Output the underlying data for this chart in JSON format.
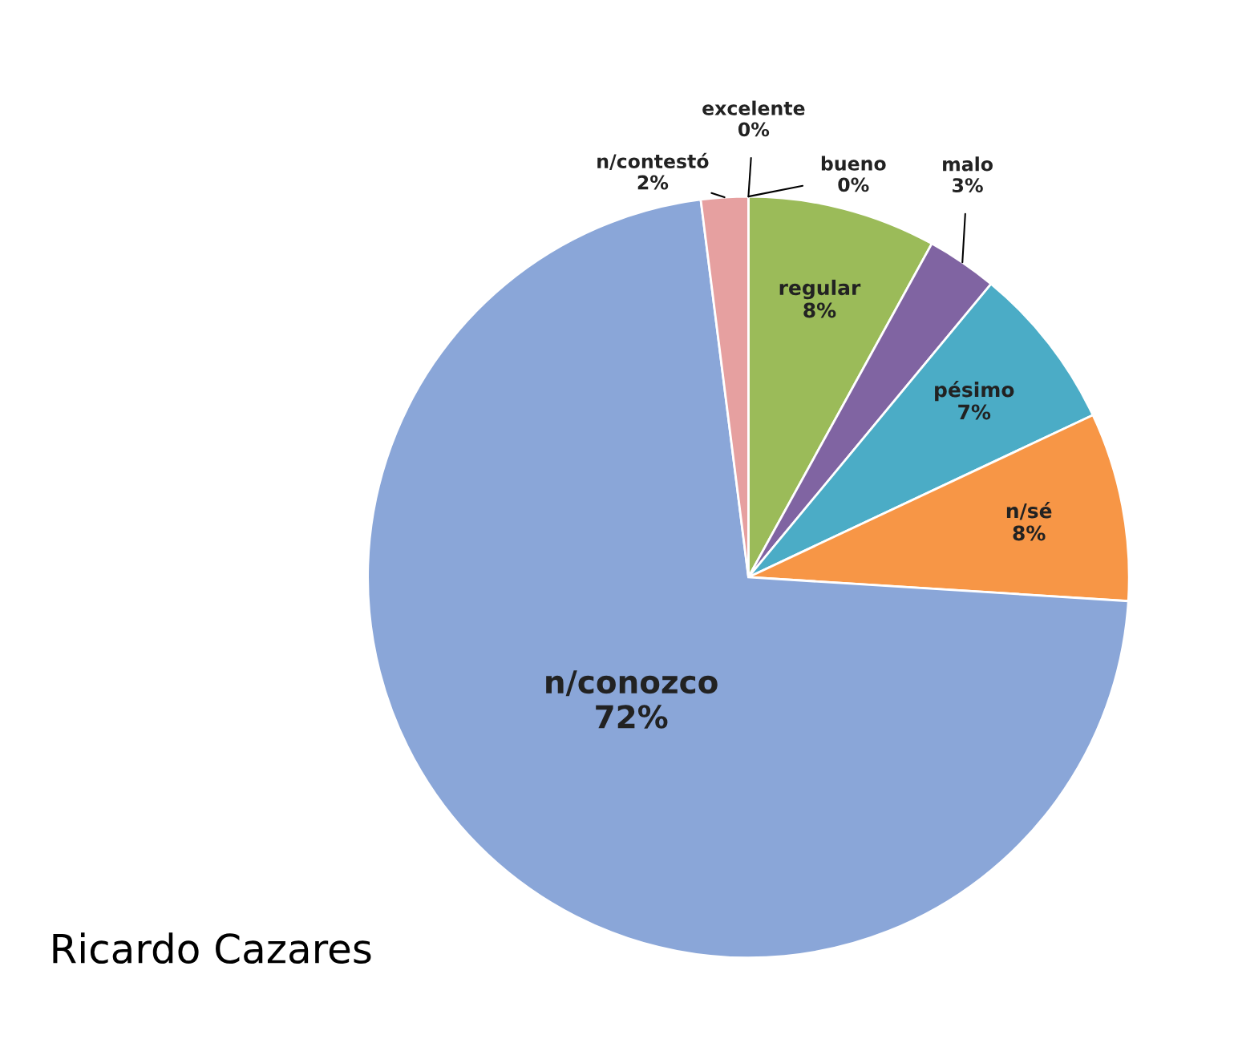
{
  "chart_data": {
    "type": "pie",
    "title": "Ricardo Cazares",
    "categories": [
      "excelente",
      "bueno",
      "regular",
      "malo",
      "pésimo",
      "n/sé",
      "n/conozco",
      "n/contestó"
    ],
    "values": [
      0,
      0,
      8,
      3,
      7,
      8,
      72,
      2
    ],
    "value_labels": [
      "0%",
      "0%",
      "8%",
      "3%",
      "7%",
      "8%",
      "72%",
      "2%"
    ],
    "colors": [
      "#4f81bd",
      "#c0504d",
      "#9bbb59",
      "#8064a2",
      "#4bacc6",
      "#f79646",
      "#8aa6d8",
      "#e6a0a0"
    ],
    "legend": false
  }
}
